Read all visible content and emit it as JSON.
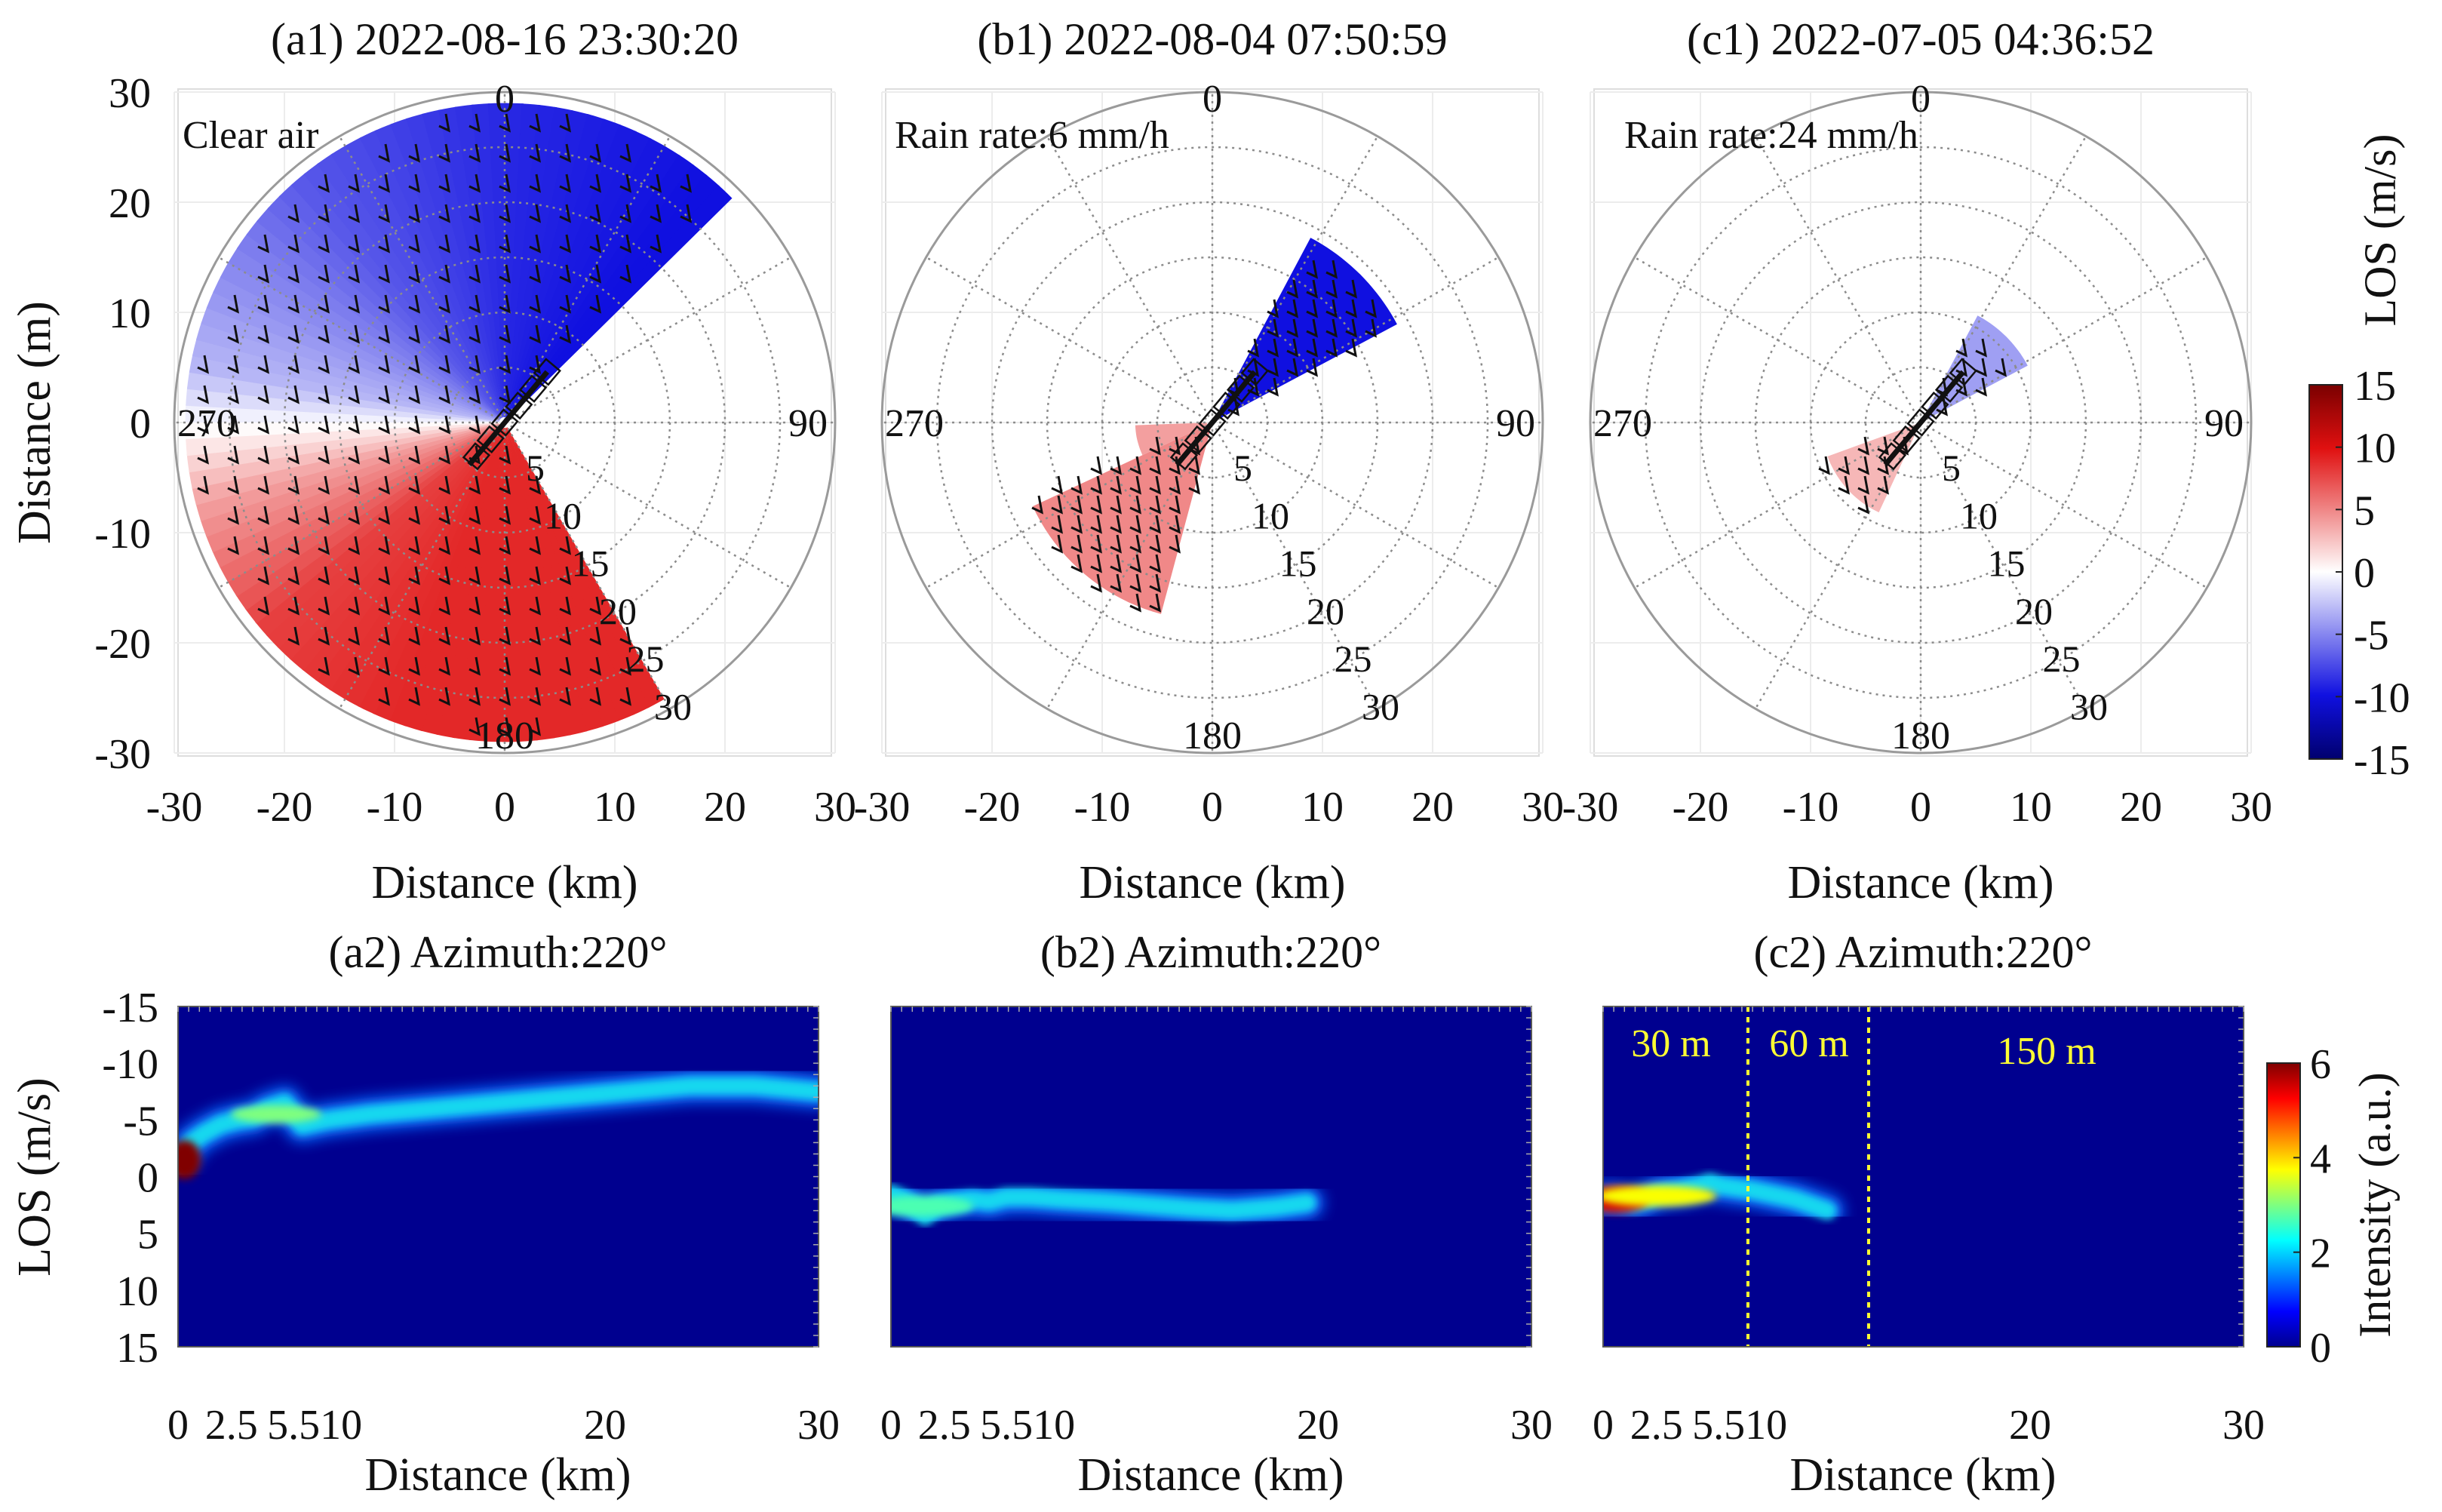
{
  "figure": {
    "polar_panels": [
      {
        "title": "(a1) 2022-08-16 23:30:20",
        "condition": "Clear air"
      },
      {
        "title": "(b1) 2022-08-04 07:50:59",
        "condition": "Rain rate:6 mm/h"
      },
      {
        "title": "(c1) 2022-07-05 04:36:52",
        "condition": "Rain rate:24 mm/h"
      }
    ],
    "spectrum_panels": [
      {
        "title": "(a2) Azimuth:220°"
      },
      {
        "title": "(b2) Azimuth:220°"
      },
      {
        "title": "(c2) Azimuth:220°"
      }
    ],
    "polar_axes": {
      "xlabel": "Distance (km)",
      "ylabel": "Distance (m)",
      "ticks": [
        "-30",
        "-20",
        "-10",
        "0",
        "10",
        "20",
        "30"
      ],
      "xticks_shared": [
        "-30",
        "-20",
        "-10",
        "0",
        "10",
        "20"
      ],
      "azimuth_labels": [
        "0",
        "90",
        "180",
        "270"
      ],
      "range_ring_labels": [
        "5",
        "10",
        "15",
        "20",
        "25",
        "30"
      ]
    },
    "spectrum_axes": {
      "xlabel": "Distance (km)",
      "ylabel": "LOS (m/s)",
      "xticks": [
        "0",
        "2.5",
        "5.510",
        "20",
        "30"
      ],
      "yticks": [
        "-15",
        "-10",
        "-5",
        "0",
        "5",
        "10",
        "15"
      ]
    },
    "los_colorbar": {
      "label": "LOS (m/s)",
      "ticks": [
        "15",
        "10",
        "5",
        "0",
        "-5",
        "-10",
        "-15"
      ]
    },
    "intensity_colorbar": {
      "label": "Intensity (a.u.)",
      "ticks": [
        "6",
        "4",
        "2",
        "0"
      ]
    },
    "resolution_labels": [
      "30 m",
      "60 m",
      "150 m"
    ]
  },
  "chart_data": [
    {
      "type": "heatmap",
      "panel": "a1",
      "projection": "polar",
      "title": "(a1) 2022-08-16 23:30:20",
      "annotation": "Clear air",
      "xlabel": "Distance (km)",
      "ylabel": "Distance (m)",
      "xlim": [
        -30,
        30
      ],
      "ylim": [
        -30,
        30
      ],
      "coverage_azimuth_deg": [
        150,
        405
      ],
      "coverage_range_km": [
        0,
        29
      ],
      "los_mps_by_azimuth": [
        {
          "azimuth": 200,
          "los": 9
        },
        {
          "azimuth": 230,
          "los": 8
        },
        {
          "azimuth": 255,
          "los": 4
        },
        {
          "azimuth": 280,
          "los": -3
        },
        {
          "azimuth": 320,
          "los": -7
        },
        {
          "azimuth": 360,
          "los": -9
        },
        {
          "azimuth": 400,
          "los": -10
        }
      ],
      "colorscale": {
        "label": "LOS (m/s)",
        "range": [
          -15,
          15
        ]
      }
    },
    {
      "type": "heatmap",
      "panel": "b1",
      "projection": "polar",
      "title": "(b1) 2022-08-04 07:50:59",
      "annotation": "Rain rate:6 mm/h",
      "xlabel": "Distance (km)",
      "xlim": [
        -30,
        30
      ],
      "ylim": [
        -30,
        30
      ],
      "coverage_range_km": [
        0,
        20
      ],
      "los_mps": {
        "northeast_sector": -10,
        "southwest_sector": 5
      }
    },
    {
      "type": "heatmap",
      "panel": "c1",
      "projection": "polar",
      "title": "(c1) 2022-07-05 04:36:52",
      "annotation": "Rain rate:24 mm/h",
      "xlabel": "Distance (km)",
      "xlim": [
        -30,
        30
      ],
      "ylim": [
        -30,
        30
      ],
      "coverage_range_km": [
        0,
        12
      ],
      "los_mps": {
        "northeast_sector": -4,
        "southwest_sector": 3
      }
    },
    {
      "type": "heatmap",
      "panel": "a2",
      "title": "(a2) Azimuth:220°",
      "xlabel": "Distance (km)",
      "ylabel": "LOS (m/s)",
      "xlim": [
        0,
        30
      ],
      "ylim": [
        -15,
        15
      ],
      "ridge": {
        "x": [
          0,
          0.3,
          0.6,
          1.2,
          2,
          2.8,
          3.5,
          4.2,
          5,
          5.8,
          7,
          9,
          12,
          15,
          18,
          21,
          24,
          27,
          30
        ],
        "los": [
          -1.5,
          -2,
          -3,
          -3.8,
          -4.6,
          -5,
          -5.2,
          -6,
          -6.5,
          -4.5,
          -5,
          -5.5,
          -6,
          -6.5,
          -7,
          -7.5,
          -8,
          -8,
          -7.5
        ]
      },
      "peak_intensity": 6,
      "colorscale": {
        "label": "Intensity (a.u.)",
        "range": [
          0,
          6
        ]
      }
    },
    {
      "type": "heatmap",
      "panel": "b2",
      "title": "(b2) Azimuth:220°",
      "xlabel": "Distance (km)",
      "xlim": [
        0,
        30
      ],
      "ylim": [
        -15,
        15
      ],
      "ridge": {
        "x": [
          0,
          0.6,
          1,
          1.6,
          2.2,
          3,
          3.8,
          4.6,
          5.4,
          6.5,
          8,
          10,
          12,
          14,
          16,
          18,
          19.5
        ],
        "los": [
          1.5,
          2,
          2.5,
          3.5,
          2.5,
          2.2,
          2,
          2.2,
          1.8,
          1.8,
          2,
          2.2,
          2.5,
          2.8,
          3,
          2.7,
          2.3
        ]
      },
      "peak_intensity": 3.5
    },
    {
      "type": "heatmap",
      "panel": "c2",
      "title": "(c2) Azimuth:220°",
      "xlabel": "Distance (km)",
      "xlim": [
        0,
        30
      ],
      "ylim": [
        -15,
        15
      ],
      "ridge": {
        "x": [
          0,
          0.5,
          1,
          1.5,
          2,
          2.5,
          3,
          3.5,
          4,
          4.5,
          5,
          5.5,
          7,
          9,
          10.5
        ],
        "los": [
          2,
          2,
          2.2,
          2.3,
          2,
          1.5,
          1.3,
          1.2,
          1,
          0.8,
          0.5,
          0.8,
          1.2,
          2,
          3
        ]
      },
      "peak_intensity": 5.5,
      "resolution_regions": [
        {
          "label": "30 m",
          "x_range": [
            0,
            2.5
          ]
        },
        {
          "label": "60 m",
          "x_range": [
            2.5,
            5.5
          ]
        },
        {
          "label": "150 m",
          "x_range": [
            5.5,
            30
          ]
        }
      ]
    }
  ]
}
